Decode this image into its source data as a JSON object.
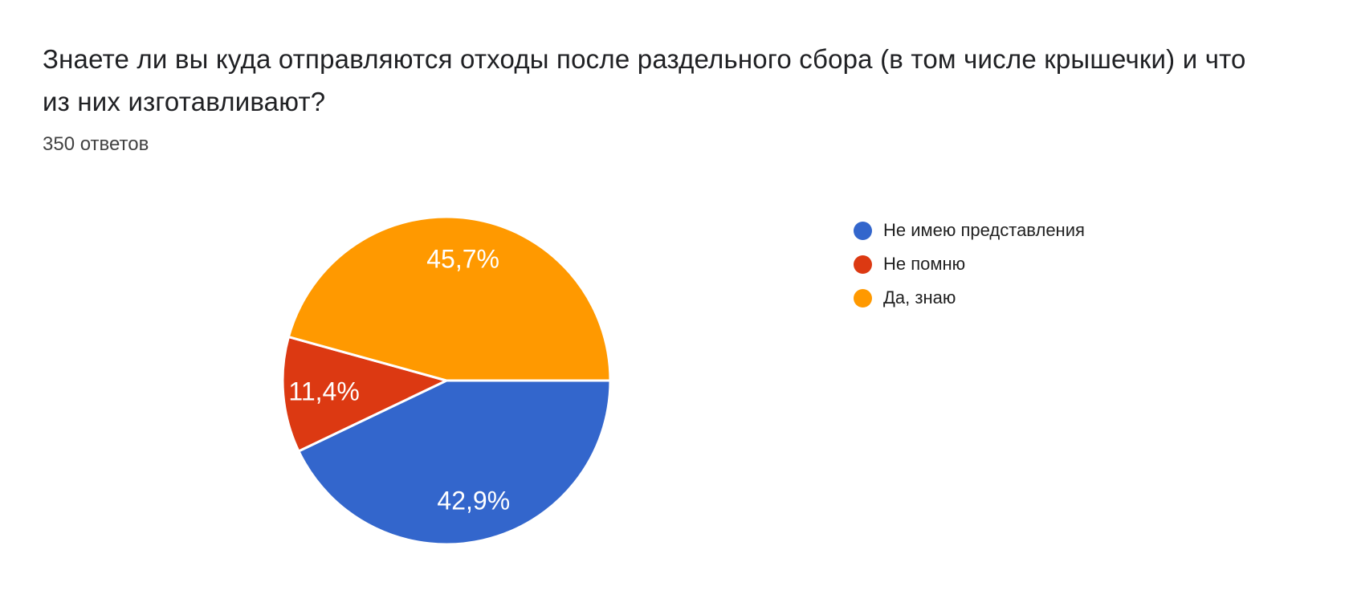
{
  "page": {
    "title": "Знаете ли вы куда отправляются отходы после раздельного сбора (в том числе крышечки) и что из них изготавливают?",
    "responses_count_label": "350 ответов"
  },
  "chart_data": {
    "type": "pie",
    "title": "Знаете ли вы куда отправляются отходы после раздельного сбора (в том числе крышечки) и что из них изготавливают?",
    "subtitle": "350 ответов",
    "total_responses": 350,
    "start_angle_deg": 0,
    "direction": "clockwise",
    "legend_position": "right",
    "separator_color": "#ffffff",
    "label_color": "#ffffff",
    "slices": [
      {
        "label": "Не имею представления",
        "percent": 42.9,
        "percent_label": "42,9%",
        "color": "#3366CC"
      },
      {
        "label": "Не помню",
        "percent": 11.4,
        "percent_label": "11,4%",
        "color": "#DC3912"
      },
      {
        "label": "Да, знаю",
        "percent": 45.7,
        "percent_label": "45,7%",
        "color": "#FF9900"
      }
    ]
  }
}
